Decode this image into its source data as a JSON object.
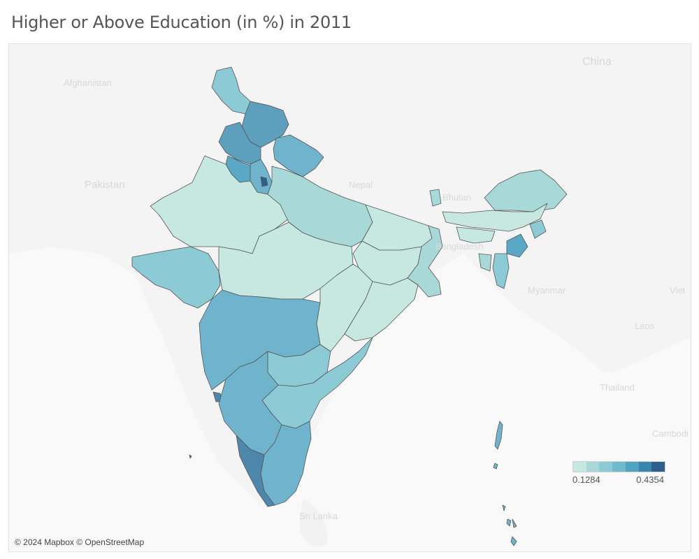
{
  "title": "Higher or Above Education (in %) in 2011",
  "credit": "© 2024 Mapbox © OpenStreetMap",
  "background_labels": {
    "afghanistan": "Afghanistan",
    "pakistan": "Pakistan",
    "china": "China",
    "nepal": "Nepal",
    "bhutan": "Bhutan",
    "bangladesh": "Bangladesh",
    "myanmar": "Myanmar",
    "laos": "Laos",
    "thailand": "Thailand",
    "viet": "Viet",
    "cambodia": "Cambodi",
    "sri_lanka": "Sri Lanka"
  },
  "legend": {
    "min_label": "0.1284",
    "max_label": "0.4354",
    "steps": [
      "#c6e8e0",
      "#a9d8d8",
      "#8ccbd5",
      "#6fbacc",
      "#4fa3c2",
      "#3a86ae",
      "#2f5f8c"
    ]
  },
  "colors": {
    "water": "#f9f9f9",
    "land": "#f3f3f3",
    "border": "#555555"
  }
}
